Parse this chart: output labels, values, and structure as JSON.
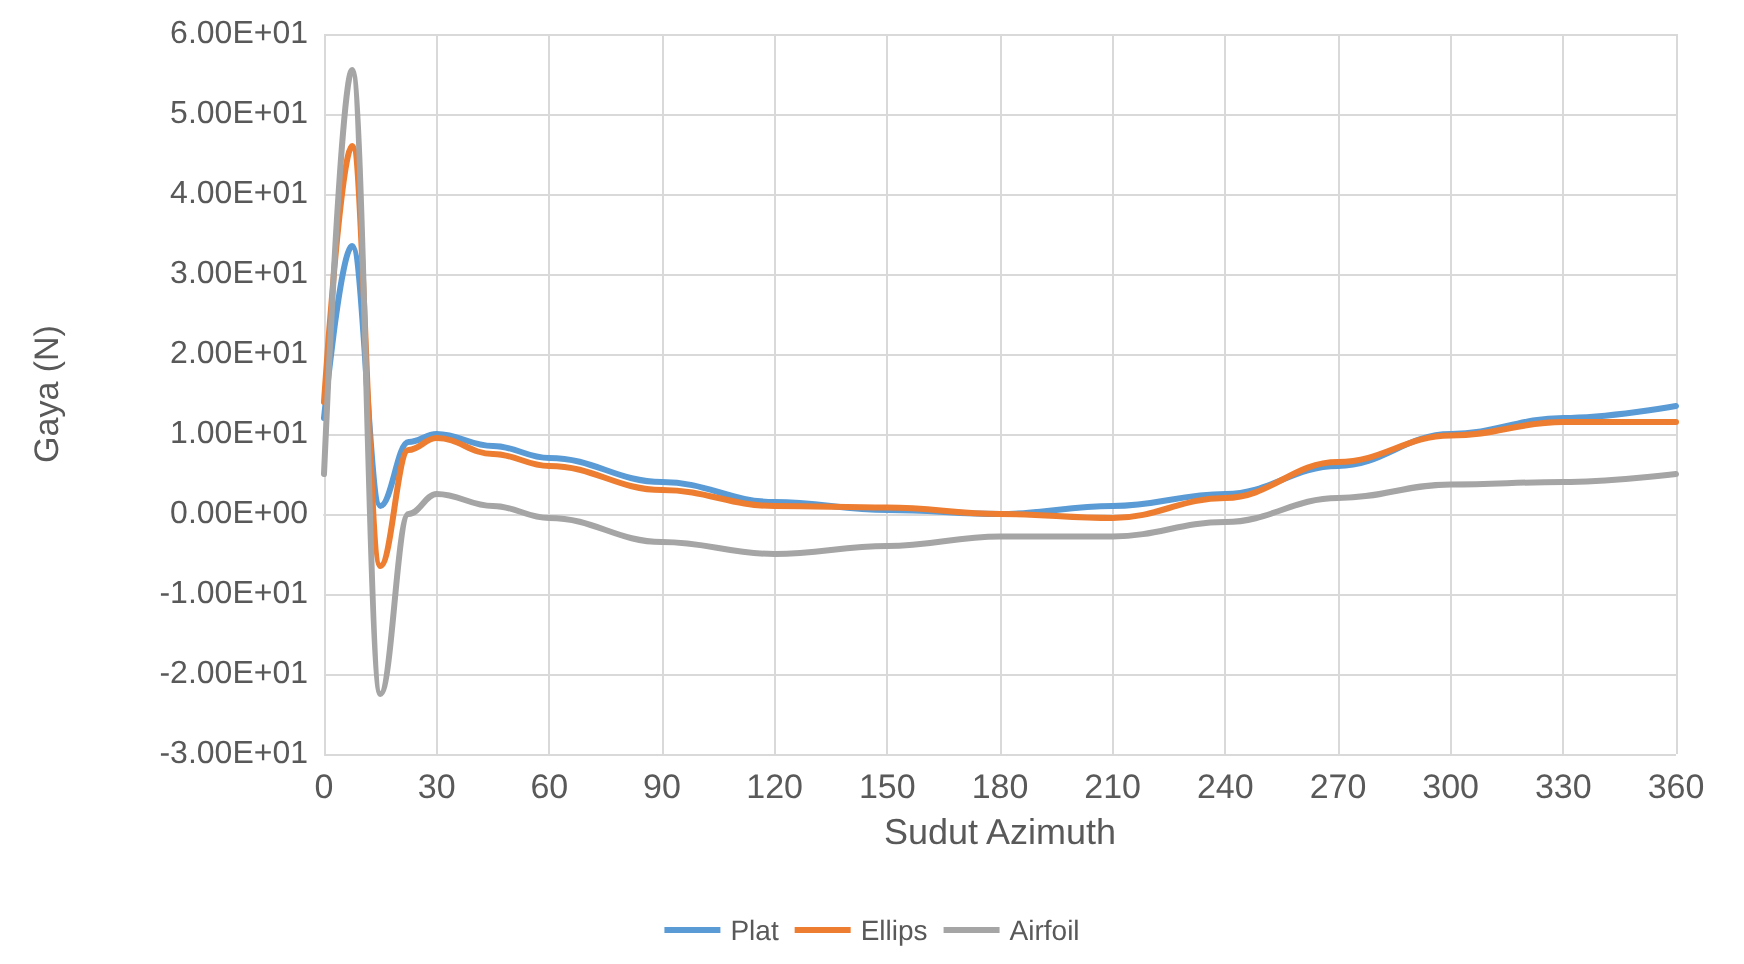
{
  "chart_data": {
    "type": "line",
    "xlabel": "Sudut Azimuth",
    "ylabel": "Gaya (N)",
    "x": [
      0,
      7.5,
      15,
      22.5,
      30,
      45,
      60,
      90,
      120,
      150,
      180,
      210,
      240,
      270,
      300,
      330,
      360
    ],
    "series": [
      {
        "name": "Plat",
        "color": "#5b9bd5",
        "values": [
          12,
          33.5,
          1,
          9,
          10,
          8.5,
          7,
          4,
          1.5,
          0.5,
          0,
          1,
          2.5,
          6,
          10,
          12,
          13.5
        ]
      },
      {
        "name": "Ellips",
        "color": "#ed7d31",
        "values": [
          14,
          46,
          -6.5,
          8,
          9.5,
          7.5,
          6,
          3,
          1,
          0.8,
          0,
          -0.5,
          2,
          6.5,
          9.8,
          11.5,
          11.5
        ]
      },
      {
        "name": "Airfoil",
        "color": "#a5a5a5",
        "values": [
          5,
          55.5,
          -22.5,
          0,
          2.5,
          1,
          -0.5,
          -3.5,
          -5,
          -4,
          -2.8,
          -2.8,
          -1,
          2,
          3.7,
          4,
          5
        ]
      }
    ],
    "xlim": [
      0,
      360
    ],
    "xticks": [
      0,
      30,
      60,
      90,
      120,
      150,
      180,
      210,
      240,
      270,
      300,
      330,
      360
    ],
    "ylim": [
      -30,
      60
    ],
    "yticks": [
      {
        "value": -30,
        "label": "-3.00E+01"
      },
      {
        "value": -20,
        "label": "-2.00E+01"
      },
      {
        "value": -10,
        "label": "-1.00E+01"
      },
      {
        "value": 0,
        "label": "0.00E+00"
      },
      {
        "value": 10,
        "label": "1.00E+01"
      },
      {
        "value": 20,
        "label": "2.00E+01"
      },
      {
        "value": 30,
        "label": "3.00E+01"
      },
      {
        "value": 40,
        "label": "4.00E+01"
      },
      {
        "value": 50,
        "label": "5.00E+01"
      },
      {
        "value": 60,
        "label": "6.00E+01"
      }
    ],
    "grid": true,
    "legend": "bottom",
    "marker": "none",
    "line_style": "solid"
  }
}
